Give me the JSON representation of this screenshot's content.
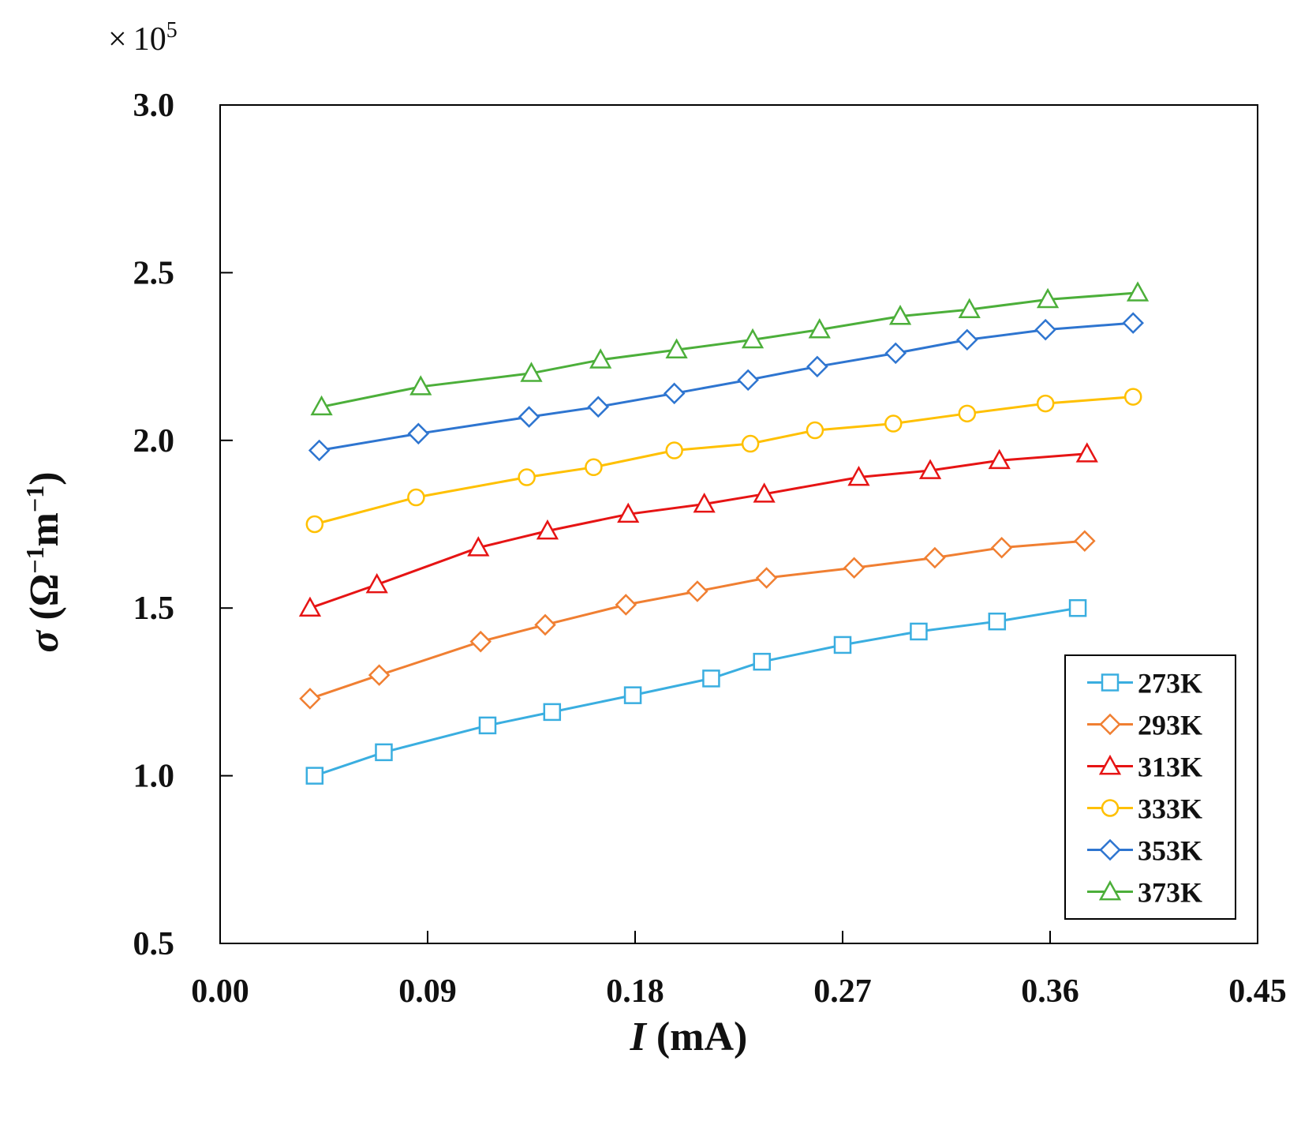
{
  "chart_data": {
    "type": "line",
    "multiplier": {
      "times": "×",
      "base": "10",
      "exponent": "5"
    },
    "xlabel": {
      "symbol": "I",
      "unit": " (mA)"
    },
    "ylabel": {
      "symbol": "σ",
      "open": " (Ω",
      "exp1": "−1",
      "m": "m",
      "exp2": "−1",
      "close": ")"
    },
    "xlim": [
      0,
      0.45
    ],
    "ylim": [
      0.5,
      3.0
    ],
    "xticks": [
      0.0,
      0.09,
      0.18,
      0.27,
      0.36,
      0.45
    ],
    "xtick_labels": [
      "0.00",
      "0.09",
      "0.18",
      "0.27",
      "0.36",
      "0.45"
    ],
    "yticks": [
      0.5,
      1.0,
      1.5,
      2.0,
      2.5,
      3.0
    ],
    "ytick_labels": [
      "0.5",
      "1.0",
      "1.5",
      "2.0",
      "2.5",
      "3.0"
    ],
    "legend_position": "bottom-right",
    "series": [
      {
        "name": "273K",
        "color": "#3AAEE0",
        "marker": "square",
        "x": [
          0.041,
          0.071,
          0.116,
          0.144,
          0.179,
          0.213,
          0.235,
          0.27,
          0.303,
          0.337,
          0.372
        ],
        "y": [
          1.0,
          1.07,
          1.15,
          1.19,
          1.24,
          1.29,
          1.34,
          1.39,
          1.43,
          1.46,
          1.5
        ]
      },
      {
        "name": "293K",
        "color": "#F07F32",
        "marker": "diamond",
        "x": [
          0.039,
          0.069,
          0.113,
          0.141,
          0.176,
          0.207,
          0.237,
          0.275,
          0.31,
          0.339,
          0.375
        ],
        "y": [
          1.23,
          1.3,
          1.4,
          1.45,
          1.51,
          1.55,
          1.59,
          1.62,
          1.65,
          1.68,
          1.7
        ]
      },
      {
        "name": "313K",
        "color": "#E61414",
        "marker": "triangle",
        "x": [
          0.039,
          0.068,
          0.112,
          0.142,
          0.177,
          0.21,
          0.236,
          0.277,
          0.308,
          0.338,
          0.376
        ],
        "y": [
          1.5,
          1.57,
          1.68,
          1.73,
          1.78,
          1.81,
          1.84,
          1.89,
          1.91,
          1.94,
          1.96
        ]
      },
      {
        "name": "333K",
        "color": "#FFC000",
        "marker": "circle",
        "x": [
          0.041,
          0.085,
          0.133,
          0.162,
          0.197,
          0.23,
          0.258,
          0.292,
          0.324,
          0.358,
          0.396
        ],
        "y": [
          1.75,
          1.83,
          1.89,
          1.92,
          1.97,
          1.99,
          2.03,
          2.05,
          2.08,
          2.11,
          2.13
        ]
      },
      {
        "name": "353K",
        "color": "#2E75D0",
        "marker": "diamond",
        "x": [
          0.043,
          0.086,
          0.134,
          0.164,
          0.197,
          0.229,
          0.259,
          0.293,
          0.324,
          0.358,
          0.396
        ],
        "y": [
          1.97,
          2.02,
          2.07,
          2.1,
          2.14,
          2.18,
          2.22,
          2.26,
          2.3,
          2.33,
          2.35
        ]
      },
      {
        "name": "373K",
        "color": "#4CAF3A",
        "marker": "triangle",
        "x": [
          0.044,
          0.087,
          0.135,
          0.165,
          0.198,
          0.231,
          0.26,
          0.295,
          0.325,
          0.359,
          0.398
        ],
        "y": [
          2.1,
          2.16,
          2.2,
          2.24,
          2.27,
          2.3,
          2.33,
          2.37,
          2.39,
          2.42,
          2.44
        ]
      }
    ]
  }
}
